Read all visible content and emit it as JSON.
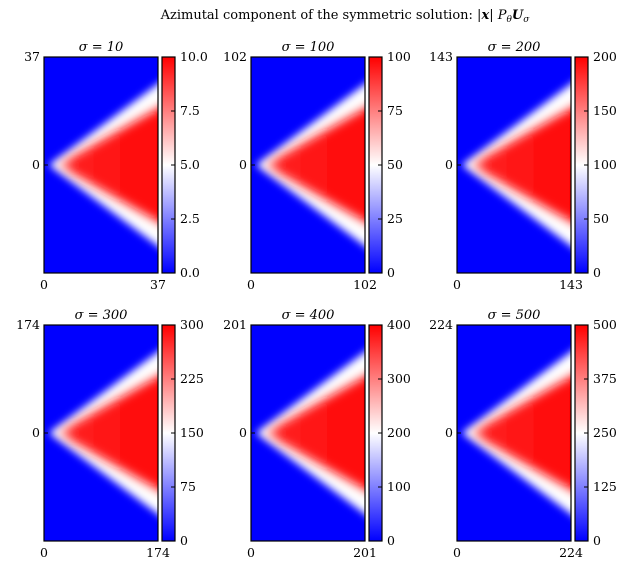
{
  "figure_title": "Azimutal component of the symmetric solution: |x| P_θ U_σ",
  "title_parts": {
    "prefix": "Azimutal component of the symmetric solution: ",
    "abs_left": "|",
    "x": "x",
    "abs_right": "| ",
    "P": "P",
    "theta": "θ",
    "U": "U",
    "sigma": "σ"
  },
  "colors": {
    "low": "#0000ff",
    "mid": "#ffffff",
    "high": "#ff0000",
    "frame": "#000000"
  },
  "chart_data": [
    {
      "type": "heatmap",
      "title": "σ = 10",
      "sigma": 10,
      "x_ticks": [
        "0",
        "37"
      ],
      "y_ticks": [
        "37",
        "0"
      ],
      "xlim": [
        0,
        37
      ],
      "colorbar": {
        "range": [
          0,
          10
        ],
        "ticks": [
          "10.0",
          "7.5",
          "5.0",
          "2.5",
          "0.0"
        ]
      }
    },
    {
      "type": "heatmap",
      "title": "σ = 100",
      "sigma": 100,
      "x_ticks": [
        "0",
        "102"
      ],
      "y_ticks": [
        "102",
        "0"
      ],
      "xlim": [
        0,
        102
      ],
      "colorbar": {
        "range": [
          0,
          100
        ],
        "ticks": [
          "100",
          "75",
          "50",
          "25",
          "0"
        ]
      }
    },
    {
      "type": "heatmap",
      "title": "σ = 200",
      "sigma": 200,
      "x_ticks": [
        "0",
        "143"
      ],
      "y_ticks": [
        "143",
        "0"
      ],
      "xlim": [
        0,
        143
      ],
      "colorbar": {
        "range": [
          0,
          200
        ],
        "ticks": [
          "200",
          "150",
          "100",
          "50",
          "0"
        ]
      }
    },
    {
      "type": "heatmap",
      "title": "σ = 300",
      "sigma": 300,
      "x_ticks": [
        "0",
        "174"
      ],
      "y_ticks": [
        "174",
        "0"
      ],
      "xlim": [
        0,
        174
      ],
      "colorbar": {
        "range": [
          0,
          300
        ],
        "ticks": [
          "300",
          "225",
          "150",
          "75",
          "0"
        ]
      }
    },
    {
      "type": "heatmap",
      "title": "σ = 400",
      "sigma": 400,
      "x_ticks": [
        "0",
        "201"
      ],
      "y_ticks": [
        "201",
        "0"
      ],
      "xlim": [
        0,
        201
      ],
      "colorbar": {
        "range": [
          0,
          400
        ],
        "ticks": [
          "400",
          "300",
          "200",
          "100",
          "0"
        ]
      }
    },
    {
      "type": "heatmap",
      "title": "σ = 500",
      "sigma": 500,
      "x_ticks": [
        "0",
        "224"
      ],
      "y_ticks": [
        "224",
        "0"
      ],
      "xlim": [
        0,
        224
      ],
      "colorbar": {
        "range": [
          0,
          500
        ],
        "ticks": [
          "500",
          "375",
          "250",
          "125",
          "0"
        ]
      }
    }
  ]
}
